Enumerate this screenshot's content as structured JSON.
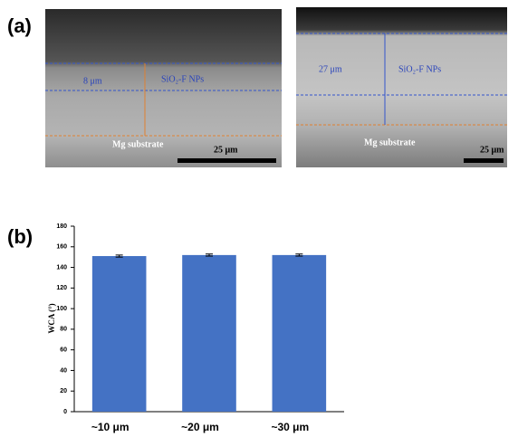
{
  "panel_a": {
    "label": "(a)",
    "images": [
      {
        "thickness": "8 μm",
        "coating": "SiO₂-F NPs",
        "substrate": "Mg substrate",
        "scale": "25 μm"
      },
      {
        "thickness": "27 μm",
        "coating": "SiO₂-F NPs",
        "substrate": "Mg substrate",
        "scale": "25 μm"
      }
    ]
  },
  "panel_b": {
    "label": "(b)"
  },
  "chart_data": {
    "type": "bar",
    "y_label": "WCA (°)",
    "categories": [
      "~10 μm",
      "~20 μm",
      "~30 μm"
    ],
    "values": [
      151,
      152,
      152
    ],
    "errors": [
      1,
      1,
      1
    ],
    "color": "#4472c4",
    "ylim": [
      0,
      180
    ],
    "yticks": [
      0,
      20,
      40,
      60,
      80,
      100,
      120,
      140,
      160,
      180
    ]
  }
}
